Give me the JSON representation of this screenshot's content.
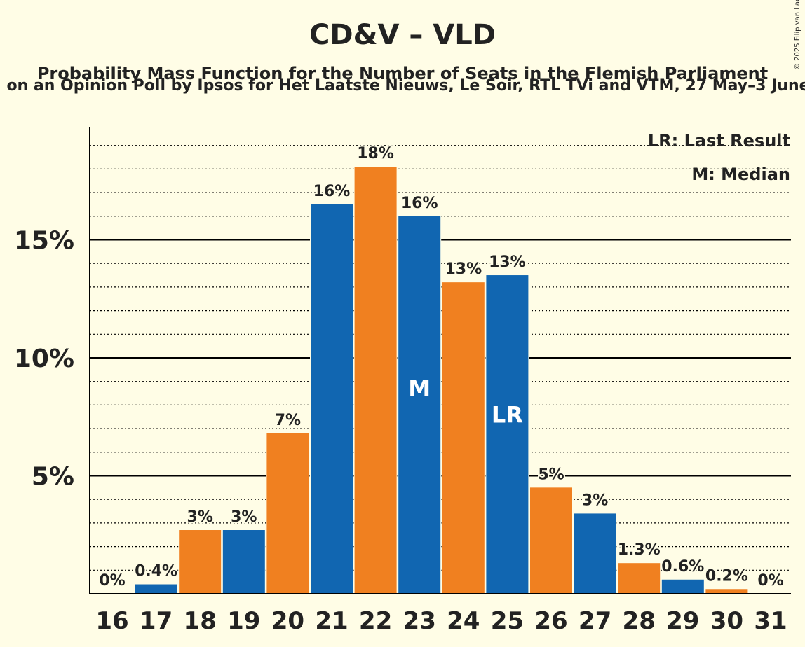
{
  "title": "CD&V – VLD",
  "subtitle": "Probability Mass Function for the Number of Seats in the Flemish Parliament",
  "subtitle2": "on an Opinion Poll by Ipsos for Het Laatste Nieuws, Le Soir, RTL TVi and VTM, 27 May–3 June",
  "copyright": "© 2025 Filip van Laenen",
  "legend": {
    "last_result": "LR: Last Result",
    "median": "M: Median"
  },
  "colors": {
    "background": "#fffde6",
    "blue": "#1166b1",
    "orange": "#f08020"
  },
  "chart_data": {
    "type": "bar",
    "categories": [
      "16",
      "17",
      "18",
      "19",
      "20",
      "21",
      "22",
      "23",
      "24",
      "25",
      "26",
      "27",
      "28",
      "29",
      "30",
      "31"
    ],
    "values": [
      0,
      0.4,
      2.7,
      2.7,
      6.8,
      16.5,
      18.1,
      16.0,
      13.2,
      13.5,
      4.5,
      3.4,
      1.3,
      0.6,
      0.2,
      0
    ],
    "data_labels": [
      "0%",
      "0.4%",
      "3%",
      "3%",
      "7%",
      "16%",
      "18%",
      "16%",
      "13%",
      "13%",
      "5%",
      "3%",
      "1.3%",
      "0.6%",
      "0.2%",
      "0%"
    ],
    "bar_colors": [
      "blue",
      "blue",
      "orange",
      "blue",
      "orange",
      "blue",
      "orange",
      "blue",
      "orange",
      "blue",
      "orange",
      "blue",
      "orange",
      "blue",
      "orange",
      "blue"
    ],
    "markers": {
      "23": "M",
      "25": "LR"
    },
    "yticks": [
      5,
      10,
      15
    ],
    "ytick_labels": [
      "5%",
      "10%",
      "15%"
    ],
    "ylim": [
      0,
      19.5
    ],
    "minor_grid_step": 1,
    "grid": true,
    "legend_position": "top-right"
  }
}
